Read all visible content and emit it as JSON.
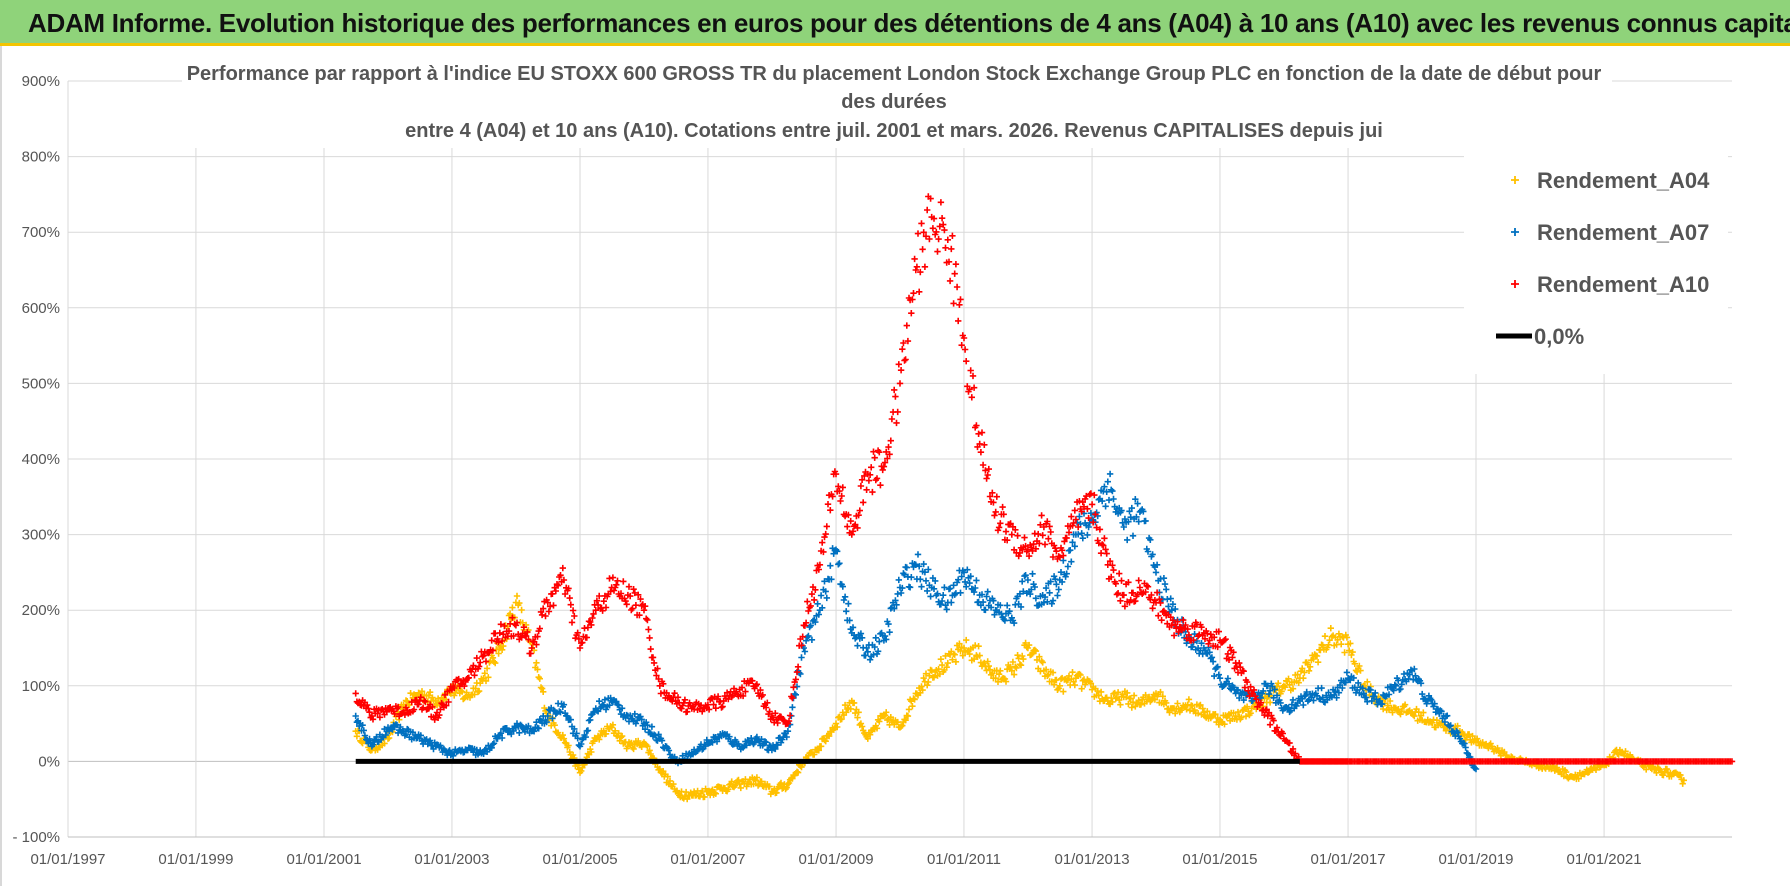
{
  "banner": {
    "title": "ADAM Informe. Evolution historique des performances en euros pour des détentions de 4 ans (A04) à 10 ans (A10) avec les revenus connus capitalisés"
  },
  "chart_data": {
    "type": "scatter",
    "title_lines": [
      "Performance par rapport à l'indice EU STOXX 600 GROSS TR  du placement London Stock Exchange Group PLC en fonction de la date de début pour",
      "des durées",
      "entre 4 (A04) et 10 ans (A10).  Cotations entre juil. 2001 et mars. 2026. Revenus CAPITALISES depuis jui"
    ],
    "xlabel": "",
    "ylabel": "",
    "x_range": [
      "1997-01-01",
      "2023-01-01"
    ],
    "x_ticks": [
      "01/01/1997",
      "01/01/1999",
      "01/01/2001",
      "01/01/2003",
      "01/01/2005",
      "01/01/2007",
      "01/01/2009",
      "01/01/2011",
      "01/01/2013",
      "01/01/2015",
      "01/01/2017",
      "01/01/2019",
      "01/01/2021"
    ],
    "y_range": [
      -100,
      900
    ],
    "y_ticks": [
      "- 100%",
      "0%",
      "100%",
      "200%",
      "300%",
      "400%",
      "500%",
      "600%",
      "700%",
      "800%",
      "900%"
    ],
    "grid": true,
    "legend_position": "top-right",
    "series": [
      {
        "name": "Rendement_A04",
        "color": "#ffc000",
        "marker": "+",
        "points": [
          [
            "2001-07-01",
            40
          ],
          [
            "2001-10-01",
            15
          ],
          [
            "2002-01-01",
            30
          ],
          [
            "2002-04-01",
            75
          ],
          [
            "2002-07-01",
            90
          ],
          [
            "2002-10-01",
            80
          ],
          [
            "2003-01-01",
            95
          ],
          [
            "2003-04-01",
            85
          ],
          [
            "2003-07-01",
            110
          ],
          [
            "2003-10-01",
            150
          ],
          [
            "2004-01-01",
            210
          ],
          [
            "2004-04-01",
            150
          ],
          [
            "2004-07-01",
            60
          ],
          [
            "2004-10-01",
            30
          ],
          [
            "2005-01-01",
            -15
          ],
          [
            "2005-04-01",
            30
          ],
          [
            "2005-07-01",
            45
          ],
          [
            "2005-10-01",
            20
          ],
          [
            "2006-01-01",
            25
          ],
          [
            "2006-04-01",
            -10
          ],
          [
            "2006-07-01",
            -40
          ],
          [
            "2006-10-01",
            -45
          ],
          [
            "2007-01-01",
            -40
          ],
          [
            "2007-04-01",
            -35
          ],
          [
            "2007-07-01",
            -30
          ],
          [
            "2007-10-01",
            -25
          ],
          [
            "2008-01-01",
            -40
          ],
          [
            "2008-04-01",
            -30
          ],
          [
            "2008-07-01",
            0
          ],
          [
            "2008-10-01",
            20
          ],
          [
            "2009-01-01",
            50
          ],
          [
            "2009-04-01",
            80
          ],
          [
            "2009-07-01",
            30
          ],
          [
            "2009-10-01",
            60
          ],
          [
            "2010-01-01",
            45
          ],
          [
            "2010-04-01",
            90
          ],
          [
            "2010-07-01",
            120
          ],
          [
            "2010-10-01",
            130
          ],
          [
            "2011-01-01",
            150
          ],
          [
            "2011-04-01",
            140
          ],
          [
            "2011-07-01",
            110
          ],
          [
            "2011-10-01",
            120
          ],
          [
            "2012-01-01",
            150
          ],
          [
            "2012-04-01",
            120
          ],
          [
            "2012-07-01",
            100
          ],
          [
            "2012-10-01",
            110
          ],
          [
            "2013-01-01",
            95
          ],
          [
            "2013-04-01",
            80
          ],
          [
            "2013-07-01",
            85
          ],
          [
            "2013-10-01",
            75
          ],
          [
            "2014-01-01",
            90
          ],
          [
            "2014-04-01",
            70
          ],
          [
            "2014-07-01",
            75
          ],
          [
            "2014-10-01",
            65
          ],
          [
            "2015-01-01",
            55
          ],
          [
            "2015-04-01",
            60
          ],
          [
            "2015-07-01",
            70
          ],
          [
            "2015-10-01",
            85
          ],
          [
            "2016-01-01",
            100
          ],
          [
            "2016-04-01",
            110
          ],
          [
            "2016-07-01",
            140
          ],
          [
            "2016-10-01",
            165
          ],
          [
            "2017-01-01",
            155
          ],
          [
            "2017-04-01",
            100
          ],
          [
            "2017-07-01",
            80
          ],
          [
            "2017-10-01",
            70
          ],
          [
            "2018-01-01",
            65
          ],
          [
            "2018-04-01",
            55
          ],
          [
            "2018-07-01",
            45
          ],
          [
            "2018-10-01",
            40
          ],
          [
            "2019-01-01",
            25
          ],
          [
            "2019-04-01",
            20
          ],
          [
            "2019-07-01",
            5
          ],
          [
            "2019-10-01",
            0
          ],
          [
            "2020-01-01",
            -5
          ],
          [
            "2020-04-01",
            -10
          ],
          [
            "2020-07-01",
            -20
          ],
          [
            "2020-10-01",
            -15
          ],
          [
            "2021-01-01",
            -5
          ],
          [
            "2021-04-01",
            15
          ],
          [
            "2021-07-01",
            0
          ],
          [
            "2021-10-01",
            -10
          ],
          [
            "2022-01-01",
            -15
          ],
          [
            "2022-04-01",
            -25
          ]
        ]
      },
      {
        "name": "Rendement_A07",
        "color": "#0070c0",
        "marker": "+",
        "points": [
          [
            "2001-07-01",
            60
          ],
          [
            "2001-10-01",
            20
          ],
          [
            "2002-01-01",
            45
          ],
          [
            "2002-04-01",
            40
          ],
          [
            "2002-07-01",
            30
          ],
          [
            "2002-10-01",
            20
          ],
          [
            "2003-01-01",
            10
          ],
          [
            "2003-04-01",
            15
          ],
          [
            "2003-07-01",
            10
          ],
          [
            "2003-10-01",
            35
          ],
          [
            "2004-01-01",
            45
          ],
          [
            "2004-04-01",
            40
          ],
          [
            "2004-07-01",
            60
          ],
          [
            "2004-10-01",
            75
          ],
          [
            "2005-01-01",
            20
          ],
          [
            "2005-04-01",
            70
          ],
          [
            "2005-07-01",
            80
          ],
          [
            "2005-10-01",
            60
          ],
          [
            "2006-01-01",
            50
          ],
          [
            "2006-04-01",
            30
          ],
          [
            "2006-07-01",
            0
          ],
          [
            "2006-10-01",
            10
          ],
          [
            "2007-01-01",
            25
          ],
          [
            "2007-04-01",
            35
          ],
          [
            "2007-07-01",
            20
          ],
          [
            "2007-10-01",
            30
          ],
          [
            "2008-01-01",
            15
          ],
          [
            "2008-04-01",
            40
          ],
          [
            "2008-07-01",
            150
          ],
          [
            "2008-10-01",
            200
          ],
          [
            "2009-01-01",
            280
          ],
          [
            "2009-04-01",
            170
          ],
          [
            "2009-07-01",
            145
          ],
          [
            "2009-10-01",
            160
          ],
          [
            "2010-01-01",
            230
          ],
          [
            "2010-04-01",
            260
          ],
          [
            "2010-07-01",
            230
          ],
          [
            "2010-10-01",
            210
          ],
          [
            "2011-01-01",
            250
          ],
          [
            "2011-04-01",
            220
          ],
          [
            "2011-07-01",
            200
          ],
          [
            "2011-10-01",
            190
          ],
          [
            "2012-01-01",
            240
          ],
          [
            "2012-04-01",
            210
          ],
          [
            "2012-07-01",
            240
          ],
          [
            "2012-10-01",
            300
          ],
          [
            "2013-01-01",
            320
          ],
          [
            "2013-04-01",
            370
          ],
          [
            "2013-07-01",
            310
          ],
          [
            "2013-10-01",
            330
          ],
          [
            "2014-01-01",
            250
          ],
          [
            "2014-04-01",
            200
          ],
          [
            "2014-07-01",
            160
          ],
          [
            "2014-10-01",
            150
          ],
          [
            "2015-01-01",
            110
          ],
          [
            "2015-04-01",
            90
          ],
          [
            "2015-07-01",
            80
          ],
          [
            "2015-10-01",
            100
          ],
          [
            "2016-01-01",
            70
          ],
          [
            "2016-04-01",
            80
          ],
          [
            "2016-07-01",
            90
          ],
          [
            "2016-10-01",
            85
          ],
          [
            "2017-01-01",
            110
          ],
          [
            "2017-04-01",
            90
          ],
          [
            "2017-07-01",
            80
          ],
          [
            "2017-10-01",
            100
          ],
          [
            "2018-01-01",
            120
          ],
          [
            "2018-04-01",
            80
          ],
          [
            "2018-07-01",
            60
          ],
          [
            "2018-10-01",
            30
          ],
          [
            "2019-01-01",
            -10
          ]
        ]
      },
      {
        "name": "Rendement_A10",
        "color": "#ff0000",
        "marker": "+",
        "points": [
          [
            "2001-07-01",
            90
          ],
          [
            "2001-10-01",
            60
          ],
          [
            "2002-01-01",
            70
          ],
          [
            "2002-04-01",
            65
          ],
          [
            "2002-07-01",
            80
          ],
          [
            "2002-10-01",
            60
          ],
          [
            "2003-01-01",
            95
          ],
          [
            "2003-04-01",
            110
          ],
          [
            "2003-07-01",
            140
          ],
          [
            "2003-10-01",
            170
          ],
          [
            "2004-01-01",
            180
          ],
          [
            "2004-04-01",
            150
          ],
          [
            "2004-07-01",
            210
          ],
          [
            "2004-10-01",
            240
          ],
          [
            "2005-01-01",
            150
          ],
          [
            "2005-04-01",
            200
          ],
          [
            "2005-07-01",
            230
          ],
          [
            "2005-10-01",
            220
          ],
          [
            "2006-01-01",
            200
          ],
          [
            "2006-04-01",
            100
          ],
          [
            "2006-07-01",
            80
          ],
          [
            "2006-10-01",
            70
          ],
          [
            "2007-01-01",
            75
          ],
          [
            "2007-04-01",
            80
          ],
          [
            "2007-07-01",
            95
          ],
          [
            "2007-10-01",
            100
          ],
          [
            "2008-01-01",
            60
          ],
          [
            "2008-04-01",
            50
          ],
          [
            "2008-07-01",
            180
          ],
          [
            "2008-10-01",
            260
          ],
          [
            "2009-01-01",
            380
          ],
          [
            "2009-04-01",
            300
          ],
          [
            "2009-07-01",
            380
          ],
          [
            "2009-10-01",
            390
          ],
          [
            "2010-01-01",
            500
          ],
          [
            "2010-04-01",
            650
          ],
          [
            "2010-07-01",
            720
          ],
          [
            "2010-10-01",
            690
          ],
          [
            "2011-01-01",
            560
          ],
          [
            "2011-04-01",
            420
          ],
          [
            "2011-07-01",
            330
          ],
          [
            "2011-10-01",
            300
          ],
          [
            "2012-01-01",
            280
          ],
          [
            "2012-04-01",
            310
          ],
          [
            "2012-07-01",
            270
          ],
          [
            "2012-10-01",
            320
          ],
          [
            "2013-01-01",
            340
          ],
          [
            "2013-04-01",
            260
          ],
          [
            "2013-07-01",
            220
          ],
          [
            "2013-10-01",
            230
          ],
          [
            "2014-01-01",
            210
          ],
          [
            "2014-04-01",
            180
          ],
          [
            "2014-07-01",
            175
          ],
          [
            "2014-10-01",
            170
          ],
          [
            "2015-01-01",
            160
          ],
          [
            "2015-04-01",
            130
          ],
          [
            "2015-07-01",
            90
          ],
          [
            "2015-10-01",
            60
          ],
          [
            "2016-01-01",
            30
          ],
          [
            "2016-04-01",
            0
          ],
          [
            "2017-01-01",
            0
          ],
          [
            "2018-01-01",
            0
          ],
          [
            "2019-01-01",
            0
          ],
          [
            "2020-01-01",
            0
          ],
          [
            "2021-01-01",
            0
          ],
          [
            "2022-01-01",
            0
          ],
          [
            "2023-01-01",
            0
          ]
        ]
      },
      {
        "name": "0,0%",
        "color": "#000000",
        "marker": "line",
        "points": [
          [
            "2001-07-01",
            0
          ],
          [
            "2016-04-01",
            0
          ]
        ]
      }
    ]
  }
}
